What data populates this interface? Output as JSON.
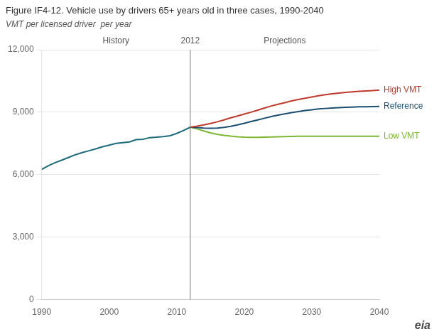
{
  "chart_data": {
    "type": "line",
    "title": "Figure IF4-12. Vehicle use by drivers 65+ years old in three cases, 1990-2040",
    "subtitle": "VMT per licensed driver  per year",
    "history_label": "History",
    "projections_label": "Projections",
    "divider": {
      "x": 2012,
      "label": "2012",
      "color": "#777777"
    },
    "logo": "eia",
    "xlim": [
      1990,
      2040
    ],
    "xticks": [
      1990,
      2000,
      2010,
      2020,
      2030,
      2040
    ],
    "ylim": [
      0,
      12000
    ],
    "yticks": [
      0,
      {
        "value": 3000,
        "label": "3,000"
      },
      {
        "value": 6000,
        "label": "6,000"
      },
      {
        "value": 9000,
        "label": "9,000"
      },
      {
        "value": 12000,
        "label": "12,000"
      }
    ],
    "grid": "y",
    "series": [
      {
        "color": "#1b6b7b",
        "x": [
          1990,
          1991,
          1992,
          1993,
          1994,
          1995,
          1996,
          1997,
          1998,
          1999,
          2000,
          2001,
          2002,
          2003,
          2004,
          2005,
          2006,
          2007,
          2008,
          2009,
          2010,
          2011,
          2012
        ],
        "values": [
          6250,
          6430,
          6580,
          6700,
          6830,
          6960,
          7060,
          7150,
          7240,
          7340,
          7420,
          7500,
          7540,
          7570,
          7680,
          7700,
          7780,
          7800,
          7830,
          7870,
          7980,
          8120,
          8280
        ]
      },
      {
        "name": "High VMT",
        "color": "#c0392b",
        "x": [
          2012,
          2013,
          2014,
          2015,
          2016,
          2017,
          2018,
          2019,
          2020,
          2021,
          2022,
          2023,
          2024,
          2025,
          2026,
          2027,
          2028,
          2029,
          2030,
          2031,
          2032,
          2033,
          2034,
          2035,
          2036,
          2037,
          2038,
          2039,
          2040
        ],
        "values": [
          8280,
          8330,
          8390,
          8460,
          8540,
          8630,
          8730,
          8820,
          8910,
          9000,
          9100,
          9200,
          9300,
          9380,
          9460,
          9540,
          9610,
          9670,
          9730,
          9790,
          9840,
          9880,
          9920,
          9950,
          9980,
          10000,
          10020,
          10040,
          10060
        ]
      },
      {
        "name": "Reference",
        "color": "#1b4f72",
        "x": [
          2012,
          2013,
          2014,
          2015,
          2016,
          2017,
          2018,
          2019,
          2020,
          2021,
          2022,
          2023,
          2024,
          2025,
          2026,
          2027,
          2028,
          2029,
          2030,
          2031,
          2032,
          2033,
          2034,
          2035,
          2036,
          2037,
          2038,
          2039,
          2040
        ],
        "values": [
          8280,
          8260,
          8240,
          8230,
          8240,
          8270,
          8320,
          8390,
          8470,
          8550,
          8630,
          8710,
          8790,
          8860,
          8920,
          8980,
          9030,
          9080,
          9120,
          9155,
          9180,
          9200,
          9220,
          9235,
          9248,
          9258,
          9265,
          9270,
          9275
        ]
      },
      {
        "name": "Low VMT",
        "color": "#7cb82f",
        "x": [
          2012,
          2013,
          2014,
          2015,
          2016,
          2017,
          2018,
          2019,
          2020,
          2021,
          2022,
          2023,
          2024,
          2025,
          2026,
          2027,
          2028,
          2029,
          2030,
          2031,
          2032,
          2033,
          2034,
          2035,
          2036,
          2037,
          2038,
          2039,
          2040
        ],
        "values": [
          8280,
          8200,
          8100,
          8010,
          7940,
          7890,
          7850,
          7820,
          7800,
          7790,
          7790,
          7800,
          7810,
          7820,
          7830,
          7840,
          7845,
          7845,
          7845,
          7845,
          7845,
          7845,
          7845,
          7845,
          7845,
          7845,
          7845,
          7845,
          7845
        ]
      }
    ]
  }
}
